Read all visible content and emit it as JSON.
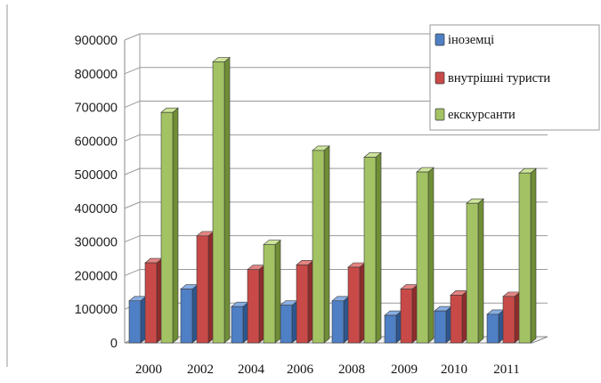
{
  "chart_data": {
    "type": "bar",
    "categories": [
      "2000",
      "2002",
      "2004",
      "2006",
      "2008",
      "2009",
      "2010",
      "2011"
    ],
    "series": [
      {
        "name": "іноземці",
        "values": [
          125000,
          160000,
          108000,
          112000,
          125000,
          82000,
          95000,
          85000
        ]
      },
      {
        "name": "внутрішні туристи",
        "values": [
          238000,
          318000,
          218000,
          232000,
          225000,
          160000,
          142000,
          138000
        ]
      },
      {
        "name": "екскурсанти",
        "values": [
          685000,
          835000,
          292000,
          572000,
          552000,
          508000,
          415000,
          505000
        ]
      }
    ],
    "yticks": [
      "0",
      "100000",
      "200000",
      "300000",
      "400000",
      "500000",
      "600000",
      "700000",
      "800000",
      "900000"
    ],
    "ylim": [
      0,
      900000
    ],
    "grid": true,
    "legend_position": "top-right",
    "colors": {
      "series": [
        "#4f7fc4",
        "#c84a48",
        "#a3c263"
      ],
      "series_dark": [
        "#2e568f",
        "#8f2c2b",
        "#6f8e36"
      ],
      "series_top": [
        "#88aee3",
        "#e28582",
        "#cde49a"
      ]
    }
  }
}
